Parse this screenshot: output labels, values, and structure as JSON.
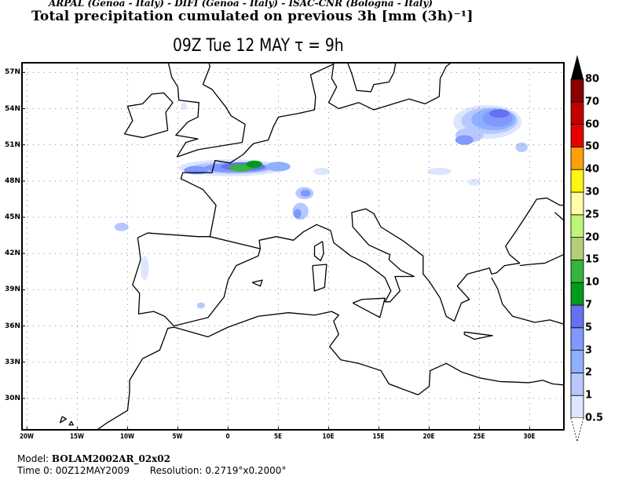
{
  "header": {
    "credits": "ARPAL (Genoa - Italy)  -  DIFI (Genoa - Italy)  -  ISAC-CNR (Bologna - Italy)",
    "title": "Total precipitation cumulated on previous 3h [mm (3h)⁻¹]",
    "subtitle": "09Z Tue 12 MAY  τ = 9h"
  },
  "map": {
    "projection": "lat-lon",
    "lon_range": [
      -20.5,
      33.4
    ],
    "lat_range": [
      27.4,
      57.8
    ],
    "grid": true,
    "lat_ticks": [
      {
        "value": 57,
        "label": "57N"
      },
      {
        "value": 54,
        "label": "54N"
      },
      {
        "value": 51,
        "label": "51N"
      },
      {
        "value": 48,
        "label": "48N"
      },
      {
        "value": 45,
        "label": "45N"
      },
      {
        "value": 42,
        "label": "42N"
      },
      {
        "value": 39,
        "label": "39N"
      },
      {
        "value": 36,
        "label": "36N"
      },
      {
        "value": 33,
        "label": "33N"
      },
      {
        "value": 30,
        "label": "30N"
      }
    ],
    "lon_ticks": [
      {
        "value": -20,
        "label": "20W"
      },
      {
        "value": -15,
        "label": "15W"
      },
      {
        "value": -10,
        "label": "10W"
      },
      {
        "value": -5,
        "label": "5W"
      },
      {
        "value": 0,
        "label": "0"
      },
      {
        "value": 5,
        "label": "5E"
      },
      {
        "value": 10,
        "label": "10E"
      },
      {
        "value": 15,
        "label": "15E"
      },
      {
        "value": 20,
        "label": "20E"
      },
      {
        "value": 25,
        "label": "25E"
      },
      {
        "value": 30,
        "label": "30E"
      }
    ]
  },
  "colorbar": {
    "levels": [
      {
        "label": "0.5",
        "color": "#dce6ff"
      },
      {
        "label": "1",
        "color": "#b8c8ff"
      },
      {
        "label": "2",
        "color": "#8fb0ff"
      },
      {
        "label": "3",
        "color": "#7f99ff"
      },
      {
        "label": "5",
        "color": "#6670f2"
      },
      {
        "label": "7",
        "color": "#009a1c"
      },
      {
        "label": "10",
        "color": "#36b43c"
      },
      {
        "label": "15",
        "color": "#b4cf78"
      },
      {
        "label": "20",
        "color": "#bdf77a"
      },
      {
        "label": "25",
        "color": "#fffca4"
      },
      {
        "label": "30",
        "color": "#fff514"
      },
      {
        "label": "40",
        "color": "#ffa00a"
      },
      {
        "label": "50",
        "color": "#e80000"
      },
      {
        "label": "60",
        "color": "#c00000"
      },
      {
        "label": "70",
        "color": "#8a0000"
      },
      {
        "label": "80",
        "color": "#000000"
      }
    ]
  },
  "footer": {
    "model_label": "Model:",
    "model": "BOLAM2002AR_02x02",
    "time_label": "Time 0:",
    "time": "00Z12MAY2009",
    "resolution_label": "Resolution:",
    "resolution": "0.2719°x0.2000°"
  }
}
